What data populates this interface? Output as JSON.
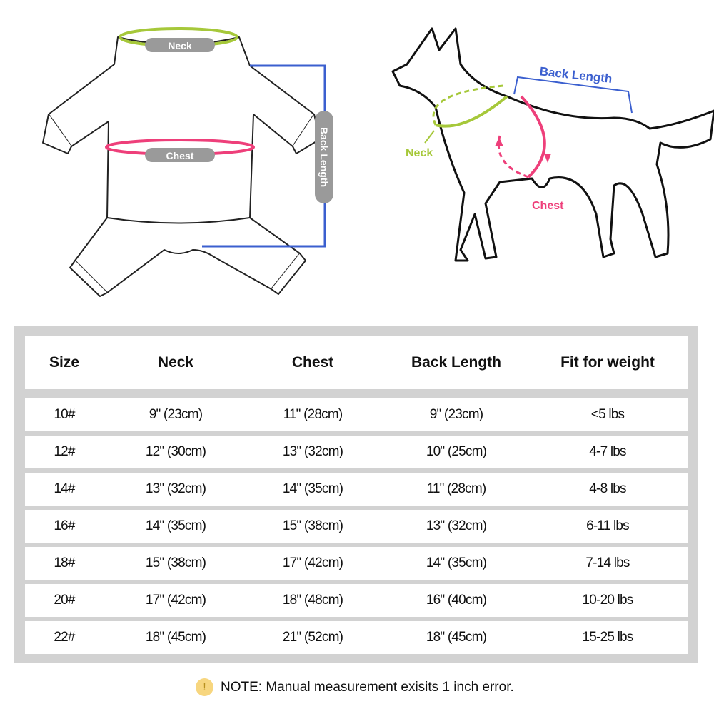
{
  "diagram": {
    "garment_labels": {
      "neck": "Neck",
      "chest": "Chest",
      "back_length": "Back Length"
    },
    "dog_labels": {
      "neck": "Neck",
      "chest": "Chest",
      "back_length": "Back Length"
    },
    "colors": {
      "neck": "#a6c83a",
      "chest": "#ee3f7a",
      "back_length": "#3b5fcf",
      "label_pill": "#9a9a9a"
    }
  },
  "table": {
    "headers": [
      "Size",
      "Neck",
      "Chest",
      "Back Length",
      "Fit for weight"
    ],
    "rows": [
      [
        "10#",
        "9\" (23cm)",
        "11\" (28cm)",
        "9\" (23cm)",
        "<5 lbs"
      ],
      [
        "12#",
        "12\" (30cm)",
        "13\" (32cm)",
        "10\" (25cm)",
        "4-7 lbs"
      ],
      [
        "14#",
        "13\" (32cm)",
        "14\" (35cm)",
        "11\" (28cm)",
        "4-8  lbs"
      ],
      [
        "16#",
        "14\" (35cm)",
        "15\" (38cm)",
        "13\" (32cm)",
        "6-11  lbs"
      ],
      [
        "18#",
        "15\" (38cm)",
        "17\" (42cm)",
        "14\" (35cm)",
        "7-14  lbs"
      ],
      [
        "20#",
        "17\" (42cm)",
        "18\" (48cm)",
        "16\" (40cm)",
        "10-20 lbs"
      ],
      [
        "22#",
        "18\" (45cm)",
        "21\" (52cm)",
        "18\" (45cm)",
        "15-25 lbs"
      ]
    ]
  },
  "note": {
    "icon": "exclamation-icon",
    "symbol": "!",
    "text": "NOTE: Manual measurement exisits 1 inch error."
  }
}
